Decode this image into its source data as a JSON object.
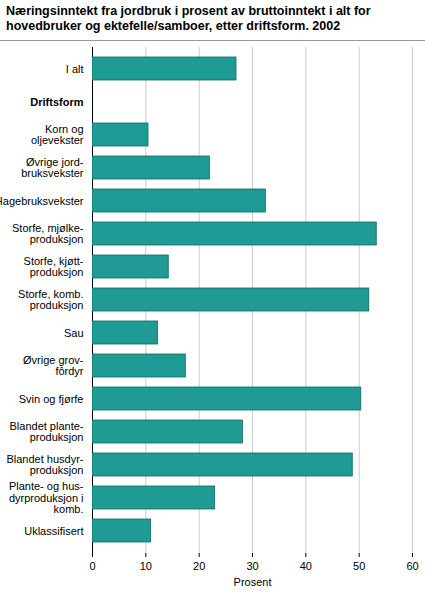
{
  "chart_data": {
    "type": "bar",
    "orientation": "horizontal",
    "title": "Næringsinntekt fra jordbruk i prosent av bruttoinntekt i alt for hovedbruker og ektefelle/samboer, etter driftsform. 2002",
    "x_label": "Prosent",
    "categories": [
      "I alt",
      "Driftsform",
      "Korn og\noljevekster",
      "Øvrige jord-\nbruksvekster",
      "Hagebruksvekster",
      "Storfe, mjølke-\nproduksjon",
      "Storfe, kjøtt-\nproduksjon",
      "Storfe, komb.\nproduksjon",
      "Sau",
      "Øvrige grov-\nfôrdyr",
      "Svin og fjørfe",
      "Blandet plante-\nproduksjon",
      "Blandet husdyr-\nproduksjon",
      "Plante- og hus-\ndyrproduksjon i\nkomb.",
      "Uklassifisert"
    ],
    "values": [
      27,
      null,
      10.5,
      22,
      32.5,
      53.3,
      14.3,
      51.9,
      12.3,
      17.5,
      50.4,
      28.2,
      48.8,
      23,
      11
    ],
    "color": "#1f9a94",
    "xlim": [
      0,
      60
    ],
    "xticks": [
      0,
      10,
      20,
      30,
      40,
      50,
      60
    ],
    "grid": true
  }
}
